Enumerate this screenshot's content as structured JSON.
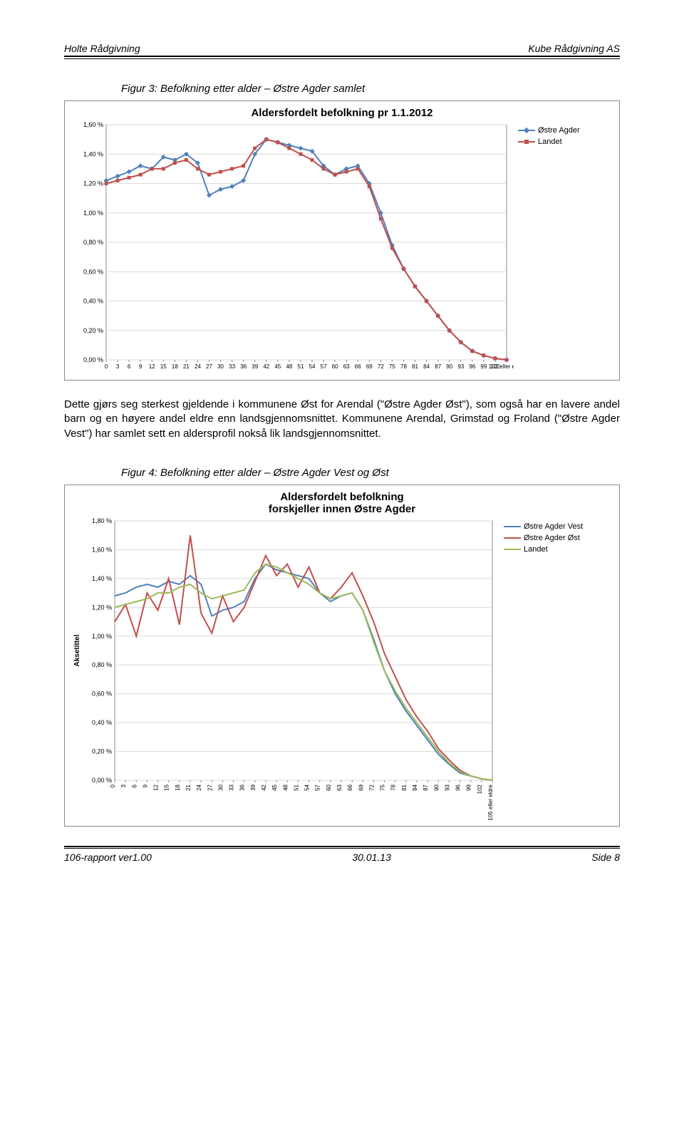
{
  "header": {
    "left": "Holte Rådgivning",
    "right": "Kube Rådgivning AS"
  },
  "footer": {
    "left": "106-rapport ver1.00",
    "center": "30.01.13",
    "right": "Side 8"
  },
  "figure3": {
    "caption": "Figur 3:   Befolkning etter alder – Østre Agder samlet",
    "chart": {
      "type": "line",
      "title": "Aldersfordelt befolkning pr 1.1.2012",
      "plot_bg": "#ffffff",
      "grid_color": "#d9d9d9",
      "axis_color": "#888888",
      "ylabel": "",
      "ylim": [
        0,
        1.6
      ],
      "ytick_step": 0.2,
      "ytick_labels": [
        "0,00 %",
        "0,20 %",
        "0,40 %",
        "0,60 %",
        "0,80 %",
        "1,00 %",
        "1,20 %",
        "1,40 %",
        "1,60 %"
      ],
      "x_values": [
        0,
        3,
        6,
        9,
        12,
        15,
        18,
        21,
        24,
        27,
        30,
        33,
        36,
        39,
        42,
        45,
        48,
        51,
        54,
        57,
        60,
        63,
        66,
        69,
        72,
        75,
        78,
        81,
        84,
        87,
        90,
        93,
        96,
        99,
        102,
        105
      ],
      "x_last_label": "102 eller eldre",
      "series": [
        {
          "name": "Østre Agder",
          "color": "#4f81bd",
          "marker": "diamond",
          "marker_fill": "#4f81bd",
          "line_width": 2,
          "data": [
            1.22,
            1.25,
            1.28,
            1.32,
            1.3,
            1.38,
            1.36,
            1.4,
            1.34,
            1.12,
            1.16,
            1.18,
            1.22,
            1.4,
            1.5,
            1.48,
            1.46,
            1.44,
            1.42,
            1.32,
            1.26,
            1.3,
            1.32,
            1.2,
            1.0,
            0.78,
            0.62,
            0.5,
            0.4,
            0.3,
            0.2,
            0.12,
            0.06,
            0.03,
            0.01,
            0.0
          ]
        },
        {
          "name": "Landet",
          "color": "#c0504d",
          "marker": "square",
          "marker_fill": "#c0504d",
          "line_width": 2,
          "data": [
            1.2,
            1.22,
            1.24,
            1.26,
            1.3,
            1.3,
            1.34,
            1.36,
            1.3,
            1.26,
            1.28,
            1.3,
            1.32,
            1.44,
            1.5,
            1.48,
            1.44,
            1.4,
            1.36,
            1.3,
            1.26,
            1.28,
            1.3,
            1.18,
            0.96,
            0.76,
            0.62,
            0.5,
            0.4,
            0.3,
            0.2,
            0.12,
            0.06,
            0.03,
            0.01,
            0.0
          ]
        }
      ],
      "legend": [
        {
          "label": "Østre Agder",
          "color": "#4f81bd",
          "marker": "diamond"
        },
        {
          "label": "Landet",
          "color": "#c0504d",
          "marker": "square"
        }
      ]
    }
  },
  "body_text": "Dette gjørs seg sterkest gjeldende i kommunene Øst for Arendal (\"Østre Agder Øst\"), som også har en lavere andel barn og en høyere andel eldre enn landsgjennomsnittet. Kommunene Arendal, Grimstad og Froland (\"Østre Agder Vest\") har samlet sett en aldersprofil nokså lik landsgjennomsnittet.",
  "figure4": {
    "caption": "Figur 4:   Befolkning etter alder – Østre Agder Vest og Øst",
    "chart": {
      "type": "line",
      "title_line1": "Aldersfordelt befolkning",
      "title_line2": "forskjeller innen Østre Agder",
      "plot_bg": "#ffffff",
      "grid_color": "#d9d9d9",
      "axis_color": "#888888",
      "ylabel": "Aksetittel",
      "ylim": [
        0,
        1.8
      ],
      "ytick_step": 0.2,
      "ytick_labels": [
        "0,00 %",
        "0,20 %",
        "0,40 %",
        "0,60 %",
        "0,80 %",
        "1,00 %",
        "1,20 %",
        "1,40 %",
        "1,60 %",
        "1,80 %"
      ],
      "x_values": [
        0,
        3,
        6,
        9,
        12,
        15,
        18,
        21,
        24,
        27,
        30,
        33,
        36,
        39,
        42,
        45,
        48,
        51,
        54,
        57,
        60,
        63,
        66,
        69,
        72,
        75,
        78,
        81,
        84,
        87,
        90,
        93,
        96,
        99,
        102,
        105
      ],
      "x_last_label": "105 eller eldre",
      "series": [
        {
          "name": "Østre Agder Vest",
          "color": "#4f81bd",
          "line_width": 2,
          "data": [
            1.28,
            1.3,
            1.34,
            1.36,
            1.34,
            1.38,
            1.36,
            1.42,
            1.36,
            1.14,
            1.18,
            1.2,
            1.24,
            1.4,
            1.5,
            1.46,
            1.44,
            1.42,
            1.4,
            1.3,
            1.24,
            1.28,
            1.3,
            1.18,
            0.98,
            0.76,
            0.6,
            0.48,
            0.38,
            0.28,
            0.18,
            0.11,
            0.05,
            0.03,
            0.01,
            0.0
          ]
        },
        {
          "name": "Østre Agder Øst",
          "color": "#c0504d",
          "line_width": 2,
          "data": [
            1.1,
            1.22,
            1.0,
            1.3,
            1.18,
            1.4,
            1.08,
            1.7,
            1.16,
            1.02,
            1.28,
            1.1,
            1.2,
            1.38,
            1.56,
            1.42,
            1.5,
            1.34,
            1.48,
            1.3,
            1.26,
            1.34,
            1.44,
            1.28,
            1.1,
            0.88,
            0.72,
            0.56,
            0.44,
            0.34,
            0.22,
            0.14,
            0.07,
            0.03,
            0.01,
            0.0
          ]
        },
        {
          "name": "Landet",
          "color": "#9bbb59",
          "line_width": 2,
          "data": [
            1.2,
            1.22,
            1.24,
            1.26,
            1.3,
            1.3,
            1.34,
            1.36,
            1.3,
            1.26,
            1.28,
            1.3,
            1.32,
            1.44,
            1.5,
            1.48,
            1.44,
            1.4,
            1.36,
            1.3,
            1.26,
            1.28,
            1.3,
            1.18,
            0.96,
            0.76,
            0.62,
            0.5,
            0.4,
            0.3,
            0.2,
            0.12,
            0.06,
            0.03,
            0.01,
            0.0
          ]
        }
      ],
      "legend": [
        {
          "label": "Østre Agder Vest",
          "color": "#4f81bd"
        },
        {
          "label": "Østre Agder Øst",
          "color": "#c0504d"
        },
        {
          "label": "Landet",
          "color": "#9bbb59"
        }
      ]
    }
  }
}
